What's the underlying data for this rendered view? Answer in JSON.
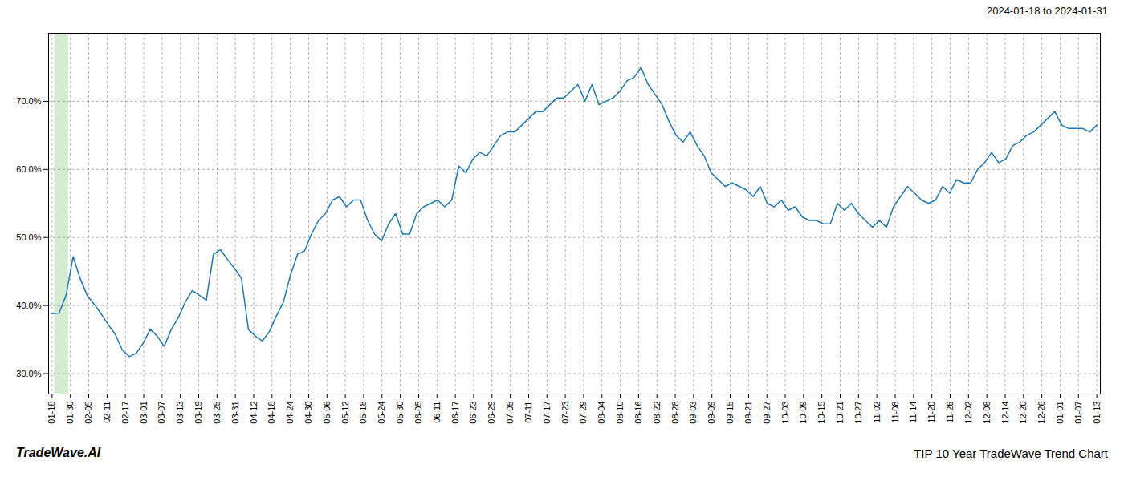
{
  "chart_data": {
    "type": "line",
    "title": "TIP 10 Year TradeWave Trend Chart",
    "subtitle": "2024-01-18 to 2024-01-31",
    "annotations": [
      "TradeWave.AI"
    ],
    "color": "#1f77b4",
    "values": [
      38.8,
      38.9,
      41.5,
      47.2,
      44.0,
      41.5,
      40.2,
      38.8,
      37.2,
      35.8,
      33.5,
      32.5,
      33.0,
      34.5,
      36.5,
      35.5,
      34.0,
      36.5,
      38.2,
      40.5,
      42.2,
      41.5,
      40.8,
      47.5,
      48.2,
      46.8,
      45.5,
      44.0,
      36.5,
      35.5,
      34.8,
      36.2,
      38.5,
      40.5,
      44.5,
      47.5,
      48.0,
      50.5,
      52.5,
      53.5,
      55.5,
      56.0,
      54.5,
      55.5,
      55.5,
      52.5,
      50.5,
      49.5,
      52.0,
      53.5,
      50.5,
      50.5,
      53.5,
      54.5,
      55.0,
      55.5,
      54.5,
      55.5,
      60.5,
      59.5,
      61.5,
      62.5,
      62.0,
      63.5,
      65.0,
      65.5,
      65.5,
      66.5,
      67.5,
      68.5,
      68.5,
      69.5,
      70.5,
      70.5,
      71.5,
      72.5,
      70.0,
      72.5,
      69.5,
      70.0,
      70.5,
      71.5,
      73.0,
      73.5,
      75.0,
      72.5,
      71.0,
      69.5,
      67.0,
      65.0,
      64.0,
      65.5,
      63.5,
      62.0,
      59.5,
      58.5,
      57.5,
      58.0,
      57.5,
      57.0,
      56.0,
      57.5,
      55.0,
      54.5,
      55.5,
      54.0,
      54.5,
      53.0,
      52.5,
      52.5,
      52.0,
      52.0,
      55.0,
      54.0,
      55.0,
      53.5,
      52.5,
      51.5,
      52.5,
      51.5,
      54.5,
      56.0,
      57.5,
      56.5,
      55.5,
      55.0,
      55.5,
      57.5,
      56.5,
      58.5,
      58.0,
      58.0,
      60.0,
      61.0,
      62.5,
      61.0,
      61.5,
      63.5,
      64.0,
      65.0,
      65.5,
      66.5,
      67.5,
      68.5,
      66.5,
      66.0,
      66.0,
      66.0,
      65.5,
      66.5
    ],
    "xlim": [
      -0.5,
      149.5
    ],
    "xticks": [
      {
        "value": 0,
        "label": "01-18"
      },
      {
        "value": 2.614,
        "label": "01-30"
      },
      {
        "value": 5.2281,
        "label": "02-05"
      },
      {
        "value": 7.8421,
        "label": "02-11"
      },
      {
        "value": 10.4561,
        "label": "02-17"
      },
      {
        "value": 13.0702,
        "label": "03-01"
      },
      {
        "value": 15.6842,
        "label": "03-07"
      },
      {
        "value": 18.2982,
        "label": "03-13"
      },
      {
        "value": 20.9123,
        "label": "03-19"
      },
      {
        "value": 23.5263,
        "label": "03-25"
      },
      {
        "value": 26.1404,
        "label": "03-31"
      },
      {
        "value": 28.7544,
        "label": "04-12"
      },
      {
        "value": 31.3684,
        "label": "04-18"
      },
      {
        "value": 33.9825,
        "label": "04-24"
      },
      {
        "value": 36.5965,
        "label": "04-30"
      },
      {
        "value": 39.2105,
        "label": "05-06"
      },
      {
        "value": 41.8246,
        "label": "05-12"
      },
      {
        "value": 44.4386,
        "label": "05-18"
      },
      {
        "value": 47.0526,
        "label": "05-24"
      },
      {
        "value": 49.6667,
        "label": "05-30"
      },
      {
        "value": 52.2807,
        "label": "06-05"
      },
      {
        "value": 54.8947,
        "label": "06-11"
      },
      {
        "value": 57.5088,
        "label": "06-17"
      },
      {
        "value": 60.1228,
        "label": "06-23"
      },
      {
        "value": 62.7368,
        "label": "06-29"
      },
      {
        "value": 65.3509,
        "label": "07-05"
      },
      {
        "value": 67.9649,
        "label": "07-11"
      },
      {
        "value": 70.5789,
        "label": "07-17"
      },
      {
        "value": 73.193,
        "label": "07-23"
      },
      {
        "value": 75.807,
        "label": "07-29"
      },
      {
        "value": 78.4211,
        "label": "08-04"
      },
      {
        "value": 81.0351,
        "label": "08-10"
      },
      {
        "value": 83.6491,
        "label": "08-16"
      },
      {
        "value": 86.2632,
        "label": "08-22"
      },
      {
        "value": 88.8772,
        "label": "08-28"
      },
      {
        "value": 91.4912,
        "label": "09-03"
      },
      {
        "value": 94.1053,
        "label": "09-09"
      },
      {
        "value": 96.7193,
        "label": "09-15"
      },
      {
        "value": 99.3333,
        "label": "09-21"
      },
      {
        "value": 101.9474,
        "label": "09-27"
      },
      {
        "value": 104.5614,
        "label": "10-03"
      },
      {
        "value": 107.1754,
        "label": "10-09"
      },
      {
        "value": 109.7895,
        "label": "10-15"
      },
      {
        "value": 112.4035,
        "label": "10-21"
      },
      {
        "value": 115.0175,
        "label": "10-27"
      },
      {
        "value": 117.6316,
        "label": "11-02"
      },
      {
        "value": 120.2456,
        "label": "11-08"
      },
      {
        "value": 122.8596,
        "label": "11-14"
      },
      {
        "value": 125.4737,
        "label": "11-20"
      },
      {
        "value": 128.0877,
        "label": "11-26"
      },
      {
        "value": 130.7018,
        "label": "12-02"
      },
      {
        "value": 133.3158,
        "label": "12-08"
      },
      {
        "value": 135.9298,
        "label": "12-14"
      },
      {
        "value": 138.5439,
        "label": "12-20"
      },
      {
        "value": 141.1579,
        "label": "12-26"
      },
      {
        "value": 143.7719,
        "label": "01-01"
      },
      {
        "value": 146.386,
        "label": "01-07"
      },
      {
        "value": 149,
        "label": "01-13"
      }
    ],
    "ylim": [
      27.0,
      80.0
    ],
    "yticks": [
      {
        "value": 30.0,
        "label": "30.0%"
      },
      {
        "value": 40.0,
        "label": "40.0%"
      },
      {
        "value": 50.0,
        "label": "50.0%"
      },
      {
        "value": 60.0,
        "label": "60.0%"
      },
      {
        "value": 70.0,
        "label": "70.0%"
      }
    ],
    "highlight": {
      "start": 0.35,
      "end": 2.35,
      "color": "#d6ecd2"
    },
    "grid": true
  }
}
